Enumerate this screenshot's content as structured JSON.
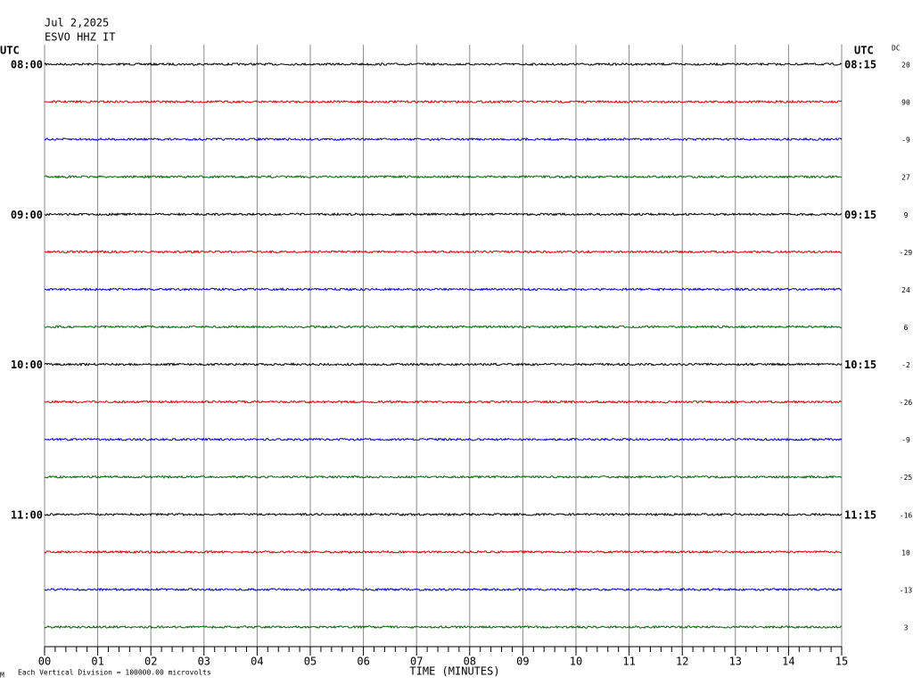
{
  "header": {
    "date": "Jul 2,2025",
    "station": "ESVO HHZ IT"
  },
  "left_axis": {
    "label": "UTC",
    "times": [
      "08:00",
      "09:00",
      "10:00",
      "11:00"
    ]
  },
  "right_axis": {
    "label": "UTC",
    "times": [
      "08:15",
      "09:15",
      "10:15",
      "11:15"
    ]
  },
  "dc": {
    "label": "DC",
    "values": [
      "20",
      "90",
      "-9",
      "27",
      "9",
      "-29",
      "24",
      "6",
      "-2",
      "-26",
      "-9",
      "-25",
      "-16",
      "10",
      "-13",
      "3"
    ]
  },
  "trace_colors": [
    "#000000",
    "#d00000",
    "#0000c0",
    "#006400"
  ],
  "x_axis": {
    "ticks": [
      "00",
      "01",
      "02",
      "03",
      "04",
      "05",
      "06",
      "07",
      "08",
      "09",
      "10",
      "11",
      "12",
      "13",
      "14",
      "15"
    ],
    "label": "TIME (MINUTES)"
  },
  "footer": {
    "mark": "M",
    "scale": "Each Vertical Division = 100000.00 microvolts"
  }
}
